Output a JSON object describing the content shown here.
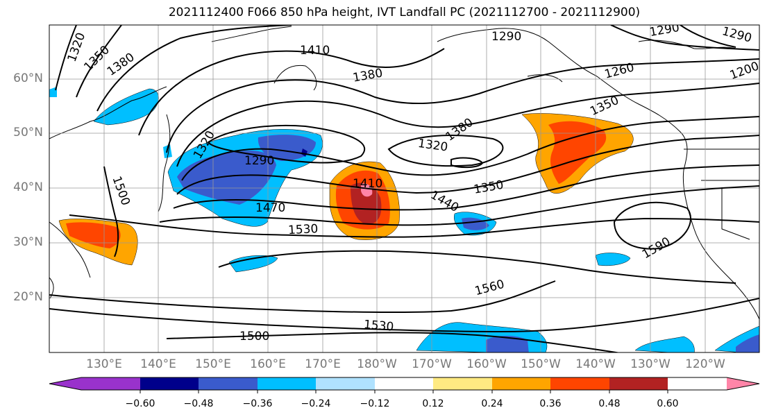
{
  "figure": {
    "title": "2021112400 F066 850 hPa height, IVT Landfall PC (2021112700 - 2021112900)"
  },
  "axes": {
    "lat_labels": [
      "60°N",
      "50°N",
      "40°N",
      "30°N",
      "20°N"
    ],
    "lon_labels": [
      "130°E",
      "140°E",
      "150°E",
      "160°E",
      "170°E",
      "180°W",
      "170°W",
      "160°W",
      "150°W",
      "140°W",
      "130°W",
      "120°W"
    ]
  },
  "contour_labels": [
    "1320",
    "1350",
    "1380",
    "1410",
    "1290",
    "1320",
    "1290",
    "1260",
    "1200",
    "1290",
    "1380",
    "1350",
    "1380",
    "1320",
    "1290",
    "1410",
    "1350",
    "1440",
    "1470",
    "1500",
    "1530",
    "1590",
    "1560",
    "1530",
    "1500"
  ],
  "colorbar": {
    "ticks": [
      "−0.60",
      "−0.48",
      "−0.36",
      "−0.24",
      "−0.12",
      "0.12",
      "0.24",
      "0.36",
      "0.48",
      "0.60"
    ],
    "colors": [
      "#9932CC",
      "#00008B",
      "#3A5BCC",
      "#00BFFF",
      "#B0E2FF",
      "#FFFFFF",
      "#FFEA82",
      "#FFA500",
      "#FF4500",
      "#B22222",
      "#FF85A8"
    ]
  },
  "palette": {
    "land_outline": "#000000",
    "grid": "#999999",
    "contour": "#000000"
  }
}
